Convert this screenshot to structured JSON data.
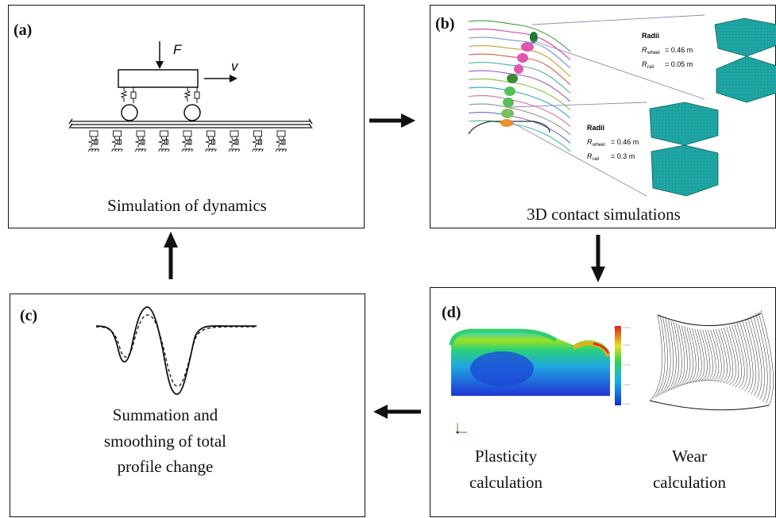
{
  "panels": {
    "a": {
      "tag": "(a)",
      "caption": "Simulation of dynamics",
      "force_label": "F",
      "velocity_label": "v"
    },
    "b": {
      "tag": "(b)",
      "caption": "3D contact simulations",
      "top": {
        "title": "Radii",
        "r1_sym": "R",
        "r1_sub": "wheel",
        "r1_val": "= 0.46 m",
        "r2_sym": "R",
        "r2_sub": "rail",
        "r2_val": "= 0.05 m"
      },
      "bottom": {
        "title": "Radii",
        "r1_sym": "R",
        "r1_sub": "wheel",
        "r1_val": "= 0.46 m",
        "r2_sym": "R",
        "r2_sub": "rail",
        "r2_val": "= 0.3 m"
      }
    },
    "c": {
      "tag": "(c)",
      "caption_line1": "Summation and",
      "caption_line2": "smoothing of total",
      "caption_line3": "profile change"
    },
    "d": {
      "tag": "(d)",
      "left_line1": "Plasticity",
      "left_line2": "calculation",
      "right_line1": "Wear",
      "right_line2": "calculation"
    }
  }
}
